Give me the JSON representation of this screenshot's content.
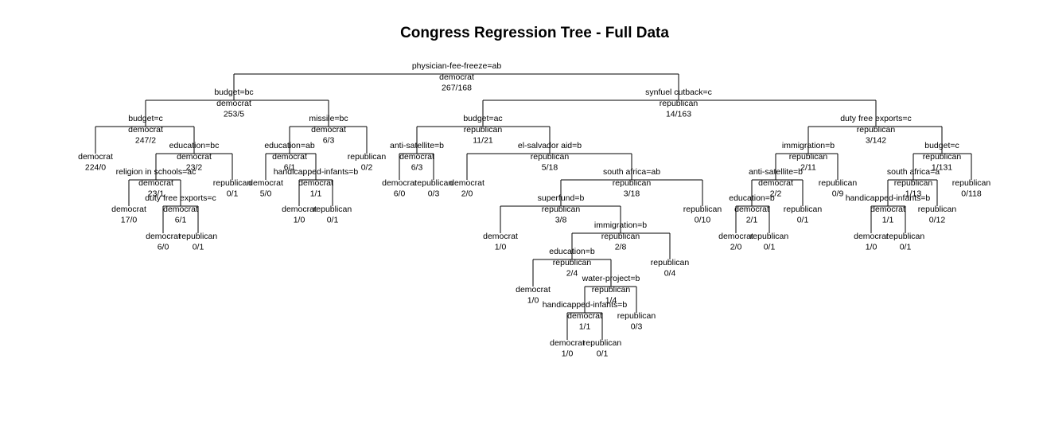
{
  "title": "Congress Regression Tree - Full Data",
  "tree": {
    "split": "physician-fee-freeze=ab",
    "class": "democrat",
    "counts": "267/168",
    "left": {
      "split": "budget=bc",
      "class": "democrat",
      "counts": "253/5",
      "left": {
        "split": "budget=c",
        "class": "democrat",
        "counts": "247/2",
        "left": {
          "class": "democrat",
          "counts": "224/0"
        },
        "right": {
          "split": "education=bc",
          "class": "democrat",
          "counts": "23/2",
          "left": {
            "split": "religion in schools=ac",
            "class": "democrat",
            "counts": "23/1",
            "left": {
              "class": "democrat",
              "counts": "17/0"
            },
            "right": {
              "split": "duty free exports=c",
              "class": "democrat",
              "counts": "6/1",
              "left": {
                "class": "democrat",
                "counts": "6/0"
              },
              "right": {
                "class": "republican",
                "counts": "0/1"
              }
            }
          },
          "right": {
            "class": "republican",
            "counts": "0/1"
          }
        }
      },
      "right": {
        "split": "missile=bc",
        "class": "democrat",
        "counts": "6/3",
        "left": {
          "split": "education=ab",
          "class": "democrat",
          "counts": "6/1",
          "left": {
            "class": "democrat",
            "counts": "5/0"
          },
          "right": {
            "split": "handicapped-infants=b",
            "class": "democrat",
            "counts": "1/1",
            "left": {
              "class": "democrat",
              "counts": "1/0"
            },
            "right": {
              "class": "republican",
              "counts": "0/1"
            }
          }
        },
        "right": {
          "class": "republican",
          "counts": "0/2"
        }
      }
    },
    "right": {
      "split": "synfuel cutback=c",
      "class": "republican",
      "counts": "14/163",
      "left": {
        "split": "budget=ac",
        "class": "republican",
        "counts": "11/21",
        "left": {
          "split": "anti-satellite=b",
          "class": "democrat",
          "counts": "6/3",
          "left": {
            "class": "democrat",
            "counts": "6/0"
          },
          "right": {
            "class": "republican",
            "counts": "0/3"
          }
        },
        "right": {
          "split": "el-salvador aid=b",
          "class": "republican",
          "counts": "5/18",
          "left": {
            "class": "democrat",
            "counts": "2/0"
          },
          "right": {
            "split": "south africa=ab",
            "class": "republican",
            "counts": "3/18",
            "left": {
              "split": "superfund=b",
              "class": "republican",
              "counts": "3/8",
              "left": {
                "class": "democrat",
                "counts": "1/0"
              },
              "right": {
                "split": "immigration=b",
                "class": "republican",
                "counts": "2/8",
                "left": {
                  "split": "education=b",
                  "class": "republican",
                  "counts": "2/4",
                  "left": {
                    "class": "democrat",
                    "counts": "1/0"
                  },
                  "right": {
                    "split": "water-project=b",
                    "class": "republican",
                    "counts": "1/4",
                    "left": {
                      "split": "handicapped-infants=b",
                      "class": "democrat",
                      "counts": "1/1",
                      "left": {
                        "class": "democrat",
                        "counts": "1/0"
                      },
                      "right": {
                        "class": "republican",
                        "counts": "0/1"
                      }
                    },
                    "right": {
                      "class": "republican",
                      "counts": "0/3"
                    }
                  }
                },
                "right": {
                  "class": "republican",
                  "counts": "0/4"
                }
              }
            },
            "right": {
              "class": "republican",
              "counts": "0/10"
            }
          }
        }
      },
      "right": {
        "split": "duty free exports=c",
        "class": "republican",
        "counts": "3/142",
        "left": {
          "split": "immigration=b",
          "class": "republican",
          "counts": "2/11",
          "left": {
            "split": "anti-satellite=b",
            "class": "democrat",
            "counts": "2/2",
            "left": {
              "split": "education=b",
              "class": "democrat",
              "counts": "2/1",
              "left": {
                "class": "democrat",
                "counts": "2/0"
              },
              "right": {
                "class": "republican",
                "counts": "0/1"
              }
            },
            "right": {
              "class": "republican",
              "counts": "0/1"
            }
          },
          "right": {
            "class": "republican",
            "counts": "0/9"
          }
        },
        "right": {
          "split": "budget=c",
          "class": "republican",
          "counts": "1/131",
          "left": {
            "split": "south africa=a",
            "class": "republican",
            "counts": "1/13",
            "left": {
              "split": "handicapped-infants=b",
              "class": "democrat",
              "counts": "1/1",
              "left": {
                "class": "democrat",
                "counts": "1/0"
              },
              "right": {
                "class": "republican",
                "counts": "0/1"
              }
            },
            "right": {
              "class": "republican",
              "counts": "0/12"
            }
          },
          "right": {
            "class": "republican",
            "counts": "0/118"
          }
        }
      }
    }
  }
}
